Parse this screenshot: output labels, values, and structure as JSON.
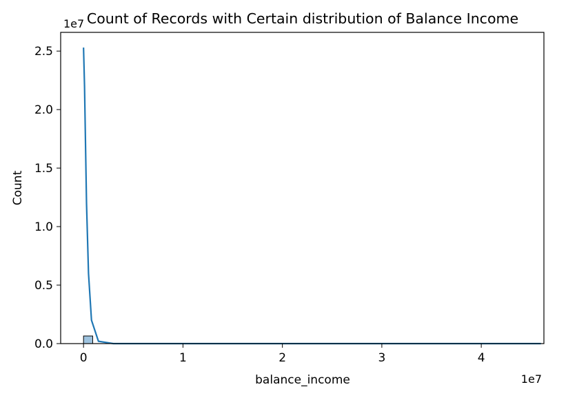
{
  "chart_data": {
    "type": "histogram",
    "title": "Count of Records with Certain distribution of Balance Income",
    "xlabel": "balance_income",
    "ylabel": "Count",
    "x_offset_label": "1e7",
    "y_offset_label": "1e7",
    "xlim": [
      -0.23,
      4.63
    ],
    "ylim": [
      0,
      2.66
    ],
    "x_ticks": [
      0,
      1,
      2,
      3,
      4
    ],
    "y_ticks": [
      0.0,
      0.5,
      1.0,
      1.5,
      2.0,
      2.5
    ],
    "x_tick_labels": [
      "0",
      "1",
      "2",
      "3",
      "4"
    ],
    "y_tick_labels": [
      "0.0",
      "0.5",
      "1.0",
      "1.5",
      "2.0",
      "2.5"
    ],
    "grid": false,
    "bars": [
      {
        "x0": 0.0,
        "x1": 0.092,
        "value": 0.065
      }
    ],
    "kde_line": {
      "x": [
        0.0,
        0.01,
        0.03,
        0.05,
        0.08,
        0.15,
        0.3,
        0.6,
        1.0,
        2.0,
        3.0,
        4.0,
        4.6
      ],
      "y": [
        2.53,
        2.2,
        1.2,
        0.6,
        0.2,
        0.02,
        0.0,
        0.0,
        0.0,
        0.0,
        0.0,
        0.0,
        0.0
      ]
    },
    "colors": {
      "bar_fill": "#9ec3df",
      "bar_edge": "#000000",
      "kde_line": "#1f77b4"
    }
  }
}
